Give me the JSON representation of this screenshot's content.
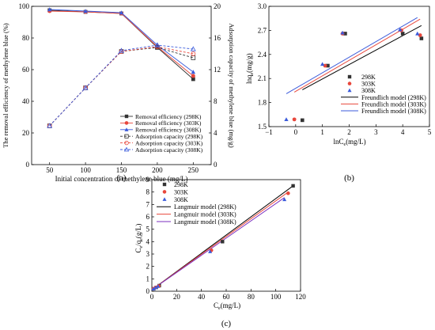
{
  "chart_data": [
    {
      "type": "line",
      "panel_label": "(a)",
      "xlabel": "Initial concentration of methylene blue (mg/L)",
      "ylabel_left": "The removal efficiency of methylene blue (%)",
      "ylabel_right": "Adsorption capacity of methylene blue (mg/g)",
      "xlim": [
        25,
        275
      ],
      "ylim_left": [
        0,
        100
      ],
      "ylim_right": [
        0,
        20
      ],
      "x_ticks": [
        50,
        100,
        150,
        200,
        250
      ],
      "y_ticks_left": [
        0,
        20,
        40,
        60,
        80,
        100
      ],
      "y_ticks_right": [
        0,
        4,
        8,
        12,
        16,
        20
      ],
      "legend_position": "bottom-right",
      "series": [
        {
          "name": "Removal efficiency (298K)",
          "axis": "left",
          "style": "solid",
          "marker": "square",
          "color": "#333333",
          "x": [
            50,
            100,
            150,
            200,
            250
          ],
          "y": [
            97.5,
            96.5,
            95.5,
            74.0,
            54.0
          ]
        },
        {
          "name": "Removal efficiency (303K)",
          "axis": "left",
          "style": "solid",
          "marker": "circle",
          "color": "#e8473c",
          "x": [
            50,
            100,
            150,
            200,
            250
          ],
          "y": [
            97.0,
            96.5,
            95.5,
            74.5,
            56.0
          ]
        },
        {
          "name": "Removal efficiency (308K)",
          "axis": "left",
          "style": "solid",
          "marker": "triangle",
          "color": "#3b5bdb",
          "x": [
            50,
            100,
            150,
            200,
            250
          ],
          "y": [
            98.0,
            97.0,
            96.0,
            75.5,
            58.5
          ]
        },
        {
          "name": "Adsorption capacity (298K)",
          "axis": "right",
          "style": "dashed",
          "marker": "square-open",
          "color": "#333333",
          "x": [
            50,
            100,
            150,
            200,
            250
          ],
          "y": [
            4.9,
            9.7,
            14.3,
            14.8,
            13.5
          ]
        },
        {
          "name": "Adsorption capacity (303K)",
          "axis": "right",
          "style": "dashed",
          "marker": "circle-open",
          "color": "#e8473c",
          "x": [
            50,
            100,
            150,
            200,
            250
          ],
          "y": [
            4.9,
            9.7,
            14.3,
            14.9,
            14.0
          ]
        },
        {
          "name": "Adsorption capacity (308K)",
          "axis": "right",
          "style": "dashed",
          "marker": "triangle-open",
          "color": "#3b5bdb",
          "x": [
            50,
            100,
            150,
            200,
            250
          ],
          "y": [
            4.9,
            9.7,
            14.4,
            15.1,
            14.6
          ]
        }
      ]
    },
    {
      "type": "scatter",
      "panel_label": "(b)",
      "xlabel_main": "lnC",
      "xlabel_sub": "e",
      "xlabel_unit": "(mg/L)",
      "ylabel_main": "lnq",
      "ylabel_sub": "e",
      "ylabel_unit": "(mg/g)",
      "xlim": [
        -1,
        5
      ],
      "ylim": [
        1.5,
        3.0
      ],
      "x_ticks": [
        -1,
        0,
        1,
        2,
        3,
        4,
        5
      ],
      "y_ticks": [
        1.5,
        1.8,
        2.1,
        2.4,
        2.7,
        3.0
      ],
      "legend_position": "bottom-right",
      "series": [
        {
          "name": "298K",
          "marker": "square",
          "color": "#333333",
          "x": [
            0.25,
            1.2,
            1.85,
            4.0,
            4.7
          ],
          "y": [
            1.58,
            2.26,
            2.66,
            2.66,
            2.6
          ]
        },
        {
          "name": "303K",
          "marker": "circle",
          "color": "#e8473c",
          "x": [
            -0.05,
            1.1,
            1.75,
            3.95,
            4.65
          ],
          "y": [
            1.59,
            2.26,
            2.66,
            2.7,
            2.64
          ]
        },
        {
          "name": "308K",
          "marker": "triangle",
          "color": "#3b5bdb",
          "x": [
            -0.35,
            1.0,
            1.75,
            3.9,
            4.55
          ],
          "y": [
            1.59,
            2.28,
            2.67,
            2.71,
            2.66
          ]
        }
      ],
      "fits": [
        {
          "name": "Freundlich model (298K)",
          "color": "#000000",
          "x": [
            0.25,
            4.7
          ],
          "y": [
            1.96,
            2.76
          ]
        },
        {
          "name": "Freundlich model (303K)",
          "color": "#e8473c",
          "x": [
            -0.05,
            4.65
          ],
          "y": [
            1.93,
            2.84
          ]
        },
        {
          "name": "Freundlich model (308K)",
          "color": "#3b5bdb",
          "x": [
            -0.35,
            4.55
          ],
          "y": [
            1.91,
            2.86
          ]
        }
      ]
    },
    {
      "type": "scatter",
      "panel_label": "(c)",
      "xlabel_main": "C",
      "xlabel_sub": "e",
      "xlabel_unit": "(mg/L)",
      "ylabel_main": "C",
      "ylabel_sub": "e",
      "ylabel_mid": "/q",
      "ylabel_sub2": "e",
      "ylabel_unit": "(g/L)",
      "xlim": [
        0,
        120
      ],
      "ylim": [
        0,
        9
      ],
      "x_ticks": [
        0,
        20,
        40,
        60,
        80,
        100,
        120
      ],
      "y_ticks": [
        0,
        1,
        2,
        3,
        4,
        5,
        6,
        7,
        8,
        9
      ],
      "legend_position": "top-left",
      "series": [
        {
          "name": "298K",
          "marker": "square",
          "color": "#333333",
          "x": [
            1.5,
            3.5,
            6.0,
            57.0,
            114.0
          ],
          "y": [
            0.2,
            0.3,
            0.45,
            4.0,
            8.5
          ]
        },
        {
          "name": "303K",
          "marker": "circle",
          "color": "#e8473c",
          "x": [
            1.3,
            3.2,
            5.5,
            48.0,
            110.0
          ],
          "y": [
            0.2,
            0.3,
            0.42,
            3.3,
            7.9
          ]
        },
        {
          "name": "308K",
          "marker": "triangle",
          "color": "#3b5bdb",
          "x": [
            1.2,
            3.0,
            5.0,
            47.0,
            107.0
          ],
          "y": [
            0.19,
            0.29,
            0.4,
            3.2,
            7.4
          ]
        }
      ],
      "fits": [
        {
          "name": "Langmuir model (298K)",
          "color": "#000000",
          "x": [
            0,
            114
          ],
          "y": [
            0.12,
            8.5
          ]
        },
        {
          "name": "Langmuir model (303K)",
          "color": "#e8473c",
          "x": [
            0,
            110
          ],
          "y": [
            0.12,
            8.0
          ]
        },
        {
          "name": "Langmuir model (308K)",
          "color": "#7b2fbf",
          "x": [
            0,
            107
          ],
          "y": [
            0.12,
            7.55
          ]
        }
      ]
    }
  ]
}
